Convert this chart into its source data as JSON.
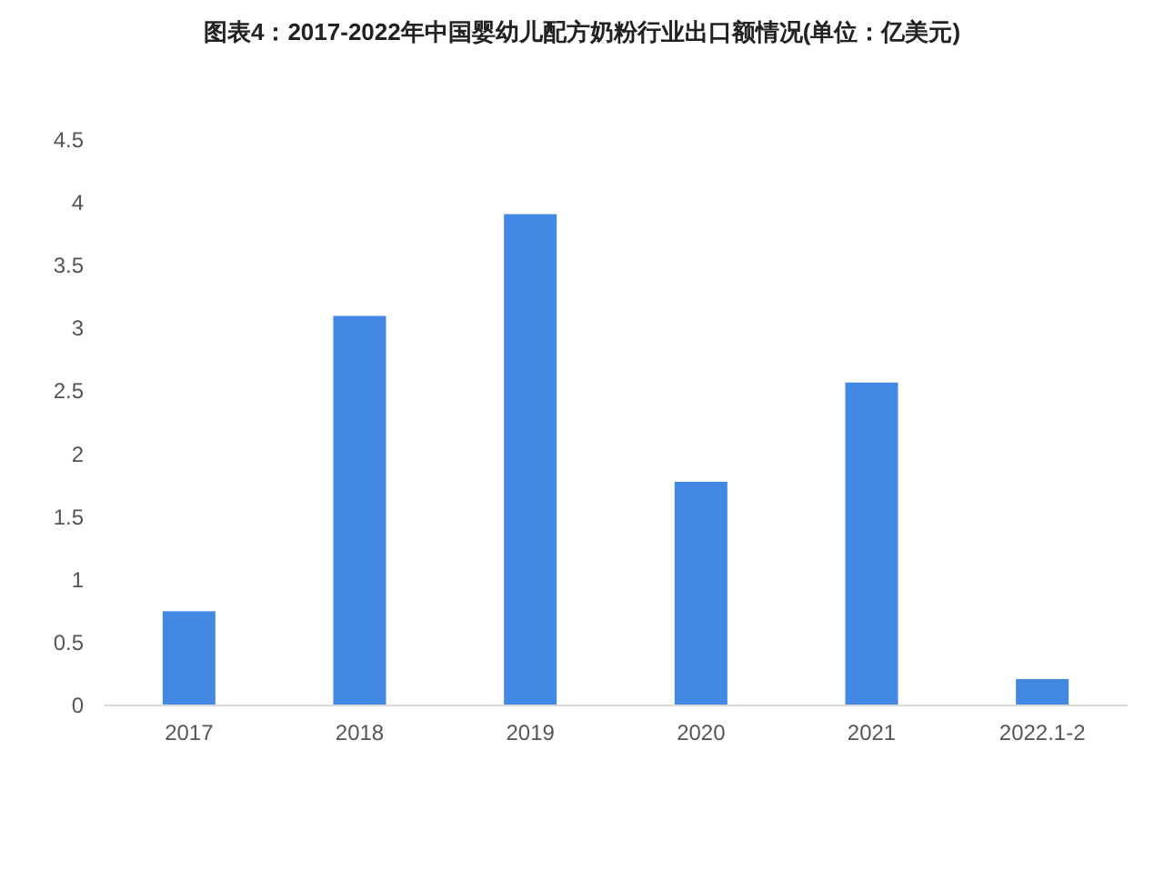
{
  "chart_data": {
    "type": "bar",
    "title": "图表4：2017-2022年中国婴幼儿配方奶粉行业出口额情况(单位：亿美元)",
    "categories": [
      "2017",
      "2018",
      "2019",
      "2020",
      "2021",
      "2022.1-2"
    ],
    "values": [
      0.75,
      3.1,
      3.91,
      1.78,
      2.57,
      0.21
    ],
    "color": "#4389e3",
    "ylim": [
      0,
      4.5
    ],
    "yticks": [
      0,
      0.5,
      1,
      1.5,
      2,
      2.5,
      3,
      3.5,
      4,
      4.5
    ],
    "grid": false
  }
}
